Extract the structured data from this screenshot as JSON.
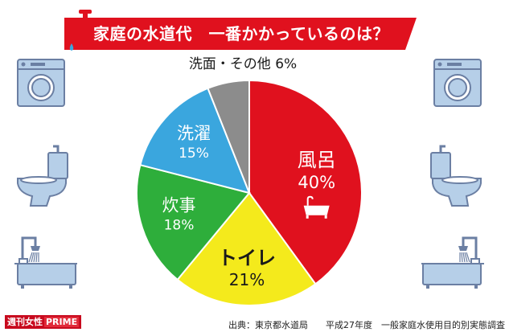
{
  "title": "家庭の水道代　一番かかっているのは？",
  "colors": {
    "banner": "#e0111e",
    "line": "#6b7fa3",
    "fill": "#b6cfe8"
  },
  "chart_data": {
    "type": "pie",
    "title": "家庭の水道代　一番かかっているのは？",
    "start_angle_deg": 0,
    "direction": "clockwise",
    "slices": [
      {
        "label": "風呂",
        "value": 40,
        "pct_text": "40%",
        "color": "#e0111e",
        "text_color": "#ffffff",
        "icon": "bathtub-icon"
      },
      {
        "label": "トイレ",
        "value": 21,
        "pct_text": "21%",
        "color": "#f4ea1c",
        "text_color": "#1a1a1a",
        "icon": ""
      },
      {
        "label": "炊事",
        "value": 18,
        "pct_text": "18%",
        "color": "#2eae3b",
        "text_color": "#ffffff",
        "icon": ""
      },
      {
        "label": "洗濯",
        "value": 15,
        "pct_text": "15%",
        "color": "#3aa6de",
        "text_color": "#ffffff",
        "icon": ""
      },
      {
        "label": "洗面・その他",
        "value": 6,
        "pct_text": "6%",
        "color": "#8c8c8c",
        "text_color": "#1a1a1a",
        "icon": ""
      }
    ]
  },
  "icons": {
    "left": [
      "washing-machine-icon",
      "toilet-icon",
      "bathtub-shower-icon"
    ],
    "right": [
      "washing-machine-icon",
      "toilet-icon",
      "bathtub-shower-icon"
    ]
  },
  "source": "出典：東京都水道局　　平成27年度　一般家庭水使用目的別実態調査",
  "brand": {
    "part1": "週刊女性",
    "part2": "PRIME"
  }
}
